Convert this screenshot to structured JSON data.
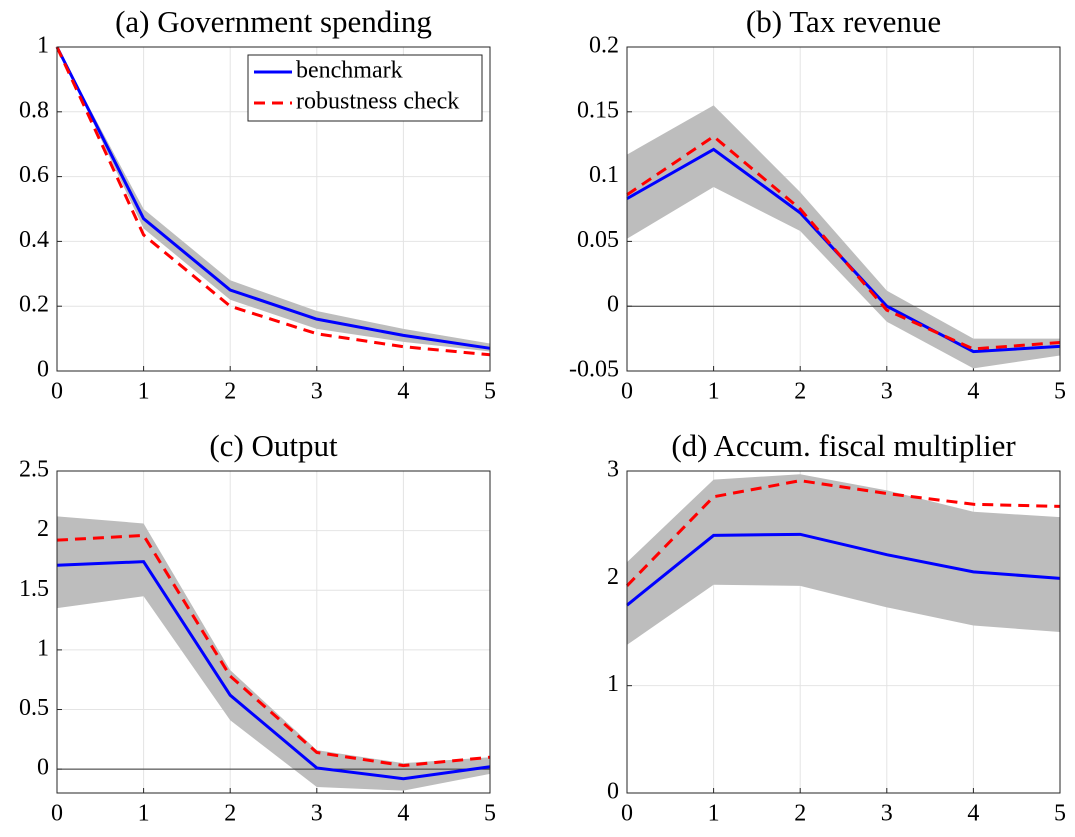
{
  "chart_data": [
    {
      "type": "line",
      "title": "(a) Government spending",
      "x": [
        0,
        1,
        2,
        3,
        4,
        5
      ],
      "xlim": [
        0,
        5
      ],
      "xticks": [
        0,
        1,
        2,
        3,
        4,
        5
      ],
      "ylim": [
        0,
        1
      ],
      "yticks": [
        0,
        0.2,
        0.4,
        0.6,
        0.8,
        1
      ],
      "grid": true,
      "legend": "top-right",
      "band": {
        "color": "#bdbdbd",
        "lower": [
          1,
          0.44,
          0.22,
          0.13,
          0.09,
          0.06
        ],
        "upper": [
          1,
          0.5,
          0.28,
          0.185,
          0.13,
          0.085
        ]
      },
      "series": [
        {
          "name": "benchmark",
          "color": "#0000ff",
          "dash": "solid",
          "values": [
            1,
            0.47,
            0.25,
            0.16,
            0.11,
            0.07
          ]
        },
        {
          "name": "robustness check",
          "color": "#ff0000",
          "dash": "dashed",
          "values": [
            1,
            0.42,
            0.2,
            0.115,
            0.075,
            0.05
          ]
        }
      ]
    },
    {
      "type": "line",
      "title": "(b) Tax revenue",
      "x": [
        0,
        1,
        2,
        3,
        4,
        5
      ],
      "xlim": [
        0,
        5
      ],
      "xticks": [
        0,
        1,
        2,
        3,
        4,
        5
      ],
      "ylim": [
        -0.05,
        0.2
      ],
      "yticks": [
        -0.05,
        0,
        0.05,
        0.1,
        0.15,
        0.2
      ],
      "grid": true,
      "zeroline": true,
      "band": {
        "color": "#bdbdbd",
        "lower": [
          0.052,
          0.092,
          0.058,
          -0.012,
          -0.048,
          -0.038
        ],
        "upper": [
          0.117,
          0.155,
          0.088,
          0.012,
          -0.025,
          -0.025
        ]
      },
      "series": [
        {
          "color": "#0000ff",
          "dash": "solid",
          "values": [
            0.083,
            0.121,
            0.072,
            0,
            -0.035,
            -0.031
          ]
        },
        {
          "color": "#ff0000",
          "dash": "dashed",
          "values": [
            0.086,
            0.131,
            0.075,
            -0.003,
            -0.033,
            -0.028
          ]
        }
      ]
    },
    {
      "type": "line",
      "title": "(c) Output",
      "x": [
        0,
        1,
        2,
        3,
        4,
        5
      ],
      "xlim": [
        0,
        5
      ],
      "xticks": [
        0,
        1,
        2,
        3,
        4,
        5
      ],
      "ylim": [
        -0.2,
        2.5
      ],
      "yticks": [
        0,
        0.5,
        1,
        1.5,
        2,
        2.5
      ],
      "grid": true,
      "zeroline": true,
      "band": {
        "color": "#bdbdbd",
        "lower": [
          1.35,
          1.45,
          0.41,
          -0.15,
          -0.18,
          -0.04
        ],
        "upper": [
          2.12,
          2.06,
          0.83,
          0.16,
          0.05,
          0.1
        ]
      },
      "series": [
        {
          "color": "#0000ff",
          "dash": "solid",
          "values": [
            1.71,
            1.74,
            0.62,
            0.01,
            -0.08,
            0.02
          ]
        },
        {
          "color": "#ff0000",
          "dash": "dashed",
          "values": [
            1.92,
            1.96,
            0.78,
            0.14,
            0.03,
            0.1
          ]
        }
      ]
    },
    {
      "type": "line",
      "title": "(d) Accum. fiscal multiplier",
      "x": [
        0,
        1,
        2,
        3,
        4,
        5
      ],
      "xlim": [
        0,
        5
      ],
      "xticks": [
        0,
        1,
        2,
        3,
        4,
        5
      ],
      "ylim": [
        0,
        3
      ],
      "yticks": [
        0,
        1,
        2,
        3
      ],
      "grid": true,
      "band": {
        "color": "#bdbdbd",
        "lower": [
          1.38,
          1.94,
          1.93,
          1.73,
          1.56,
          1.5
        ],
        "upper": [
          2.15,
          2.92,
          2.97,
          2.82,
          2.62,
          2.57
        ]
      },
      "series": [
        {
          "color": "#0000ff",
          "dash": "solid",
          "values": [
            1.75,
            2.4,
            2.41,
            2.22,
            2.06,
            2
          ]
        },
        {
          "color": "#ff0000",
          "dash": "dashed",
          "values": [
            1.93,
            2.76,
            2.91,
            2.79,
            2.69,
            2.67
          ]
        }
      ]
    }
  ]
}
